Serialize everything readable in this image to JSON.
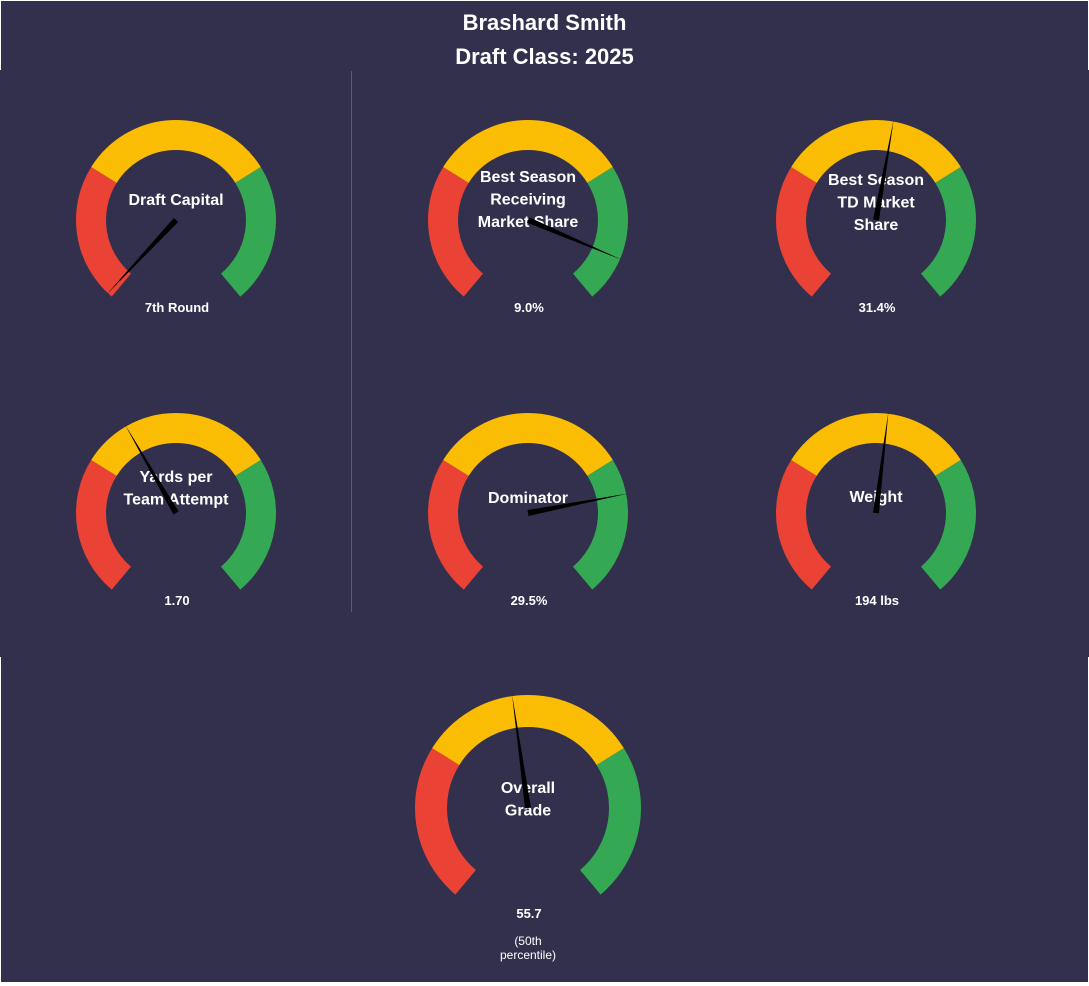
{
  "header": {
    "player_name": "Brashard Smith",
    "draft_class": "Draft Class: 2025"
  },
  "colors": {
    "background": "#32304d",
    "red": "#ea4335",
    "yellow": "#fbbc04",
    "green": "#34a853",
    "needle": "#000000"
  },
  "chart_data": [
    {
      "type": "gauge",
      "id": "draft-capital",
      "label_lines": [
        "Draft Capital"
      ],
      "value_label": "7th Round",
      "needle_angle_deg": 223
    },
    {
      "type": "gauge",
      "id": "receiving-market-share",
      "label_lines": [
        "Best Season",
        "Receiving",
        "Market Share"
      ],
      "value_label": "9.0%",
      "needle_angle_deg": 113
    },
    {
      "type": "gauge",
      "id": "td-market-share",
      "label_lines": [
        "Best Season",
        "TD Market",
        "Share"
      ],
      "value_label": "31.4%",
      "needle_angle_deg": 10
    },
    {
      "type": "gauge",
      "id": "yards-per-team-attempt",
      "label_lines": [
        "Yards per",
        "Team Attempt"
      ],
      "value_label": "1.70",
      "needle_angle_deg": -30
    },
    {
      "type": "gauge",
      "id": "dominator",
      "label_lines": [
        "Dominator"
      ],
      "value_label": "29.5%",
      "needle_angle_deg": 79
    },
    {
      "type": "gauge",
      "id": "weight",
      "label_lines": [
        "Weight"
      ],
      "value_label": "194 lbs",
      "needle_angle_deg": 7
    },
    {
      "type": "gauge",
      "id": "overall-grade",
      "label_lines": [
        "Overall",
        "Grade"
      ],
      "value_label": "55.7",
      "sub_label_lines": [
        "(50th",
        "percentile)"
      ],
      "needle_angle_deg": -8
    }
  ]
}
